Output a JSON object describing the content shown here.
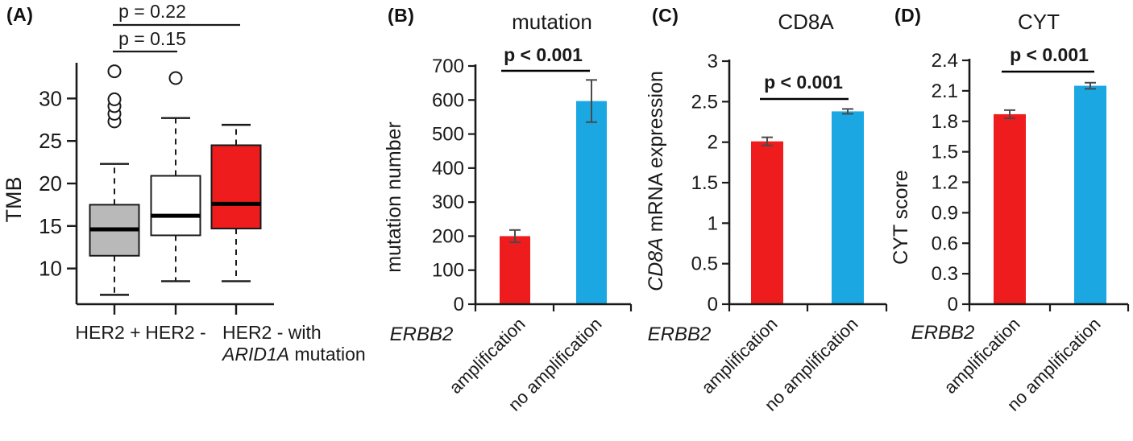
{
  "colors": {
    "red": "#ee1c1c",
    "blue": "#1aa7e2",
    "gray_box": "#b9b9b9",
    "p_value_red": "#ed1c24",
    "axis_black": "#1a1a1a",
    "error_bar": "#4a4a4a"
  },
  "panels": {
    "a": "(A)",
    "b": "(B)",
    "c": "(C)",
    "d": "(D)"
  },
  "chart_data": [
    {
      "panel": "A",
      "type": "boxplot",
      "title": "",
      "ylabel": "TMB",
      "ylim": [
        5.8,
        34.2
      ],
      "yticks": [
        10,
        15,
        20,
        25,
        30
      ],
      "categories": [
        "HER2 +",
        "HER2 -",
        "HER2 - with ARID1A mutation"
      ],
      "category_labels": {
        "g1": "HER2 +",
        "g2": "HER2 -",
        "g3_line1": "HER2 - with",
        "g3_italic": "ARID1A",
        "g3_rest": " mutation"
      },
      "boxes": [
        {
          "label": "HER2 +",
          "fill": "#b9b9b9",
          "whisker_low": 6.9,
          "q1": 11.5,
          "median": 14.6,
          "q3": 17.5,
          "whisker_high": 22.3,
          "outliers": [
            27.3,
            28.2,
            29.1,
            29.9,
            33.2
          ]
        },
        {
          "label": "HER2 -",
          "fill": "#ffffff",
          "whisker_low": 8.5,
          "q1": 13.9,
          "median": 16.2,
          "q3": 20.9,
          "whisker_high": 27.7,
          "outliers": [
            32.4
          ]
        },
        {
          "label": "HER2 - with ARID1A mutation",
          "fill": "#ee1c1c",
          "whisker_low": 8.5,
          "q1": 14.7,
          "median": 17.6,
          "q3": 24.5,
          "whisker_high": 26.9,
          "outliers": []
        }
      ],
      "annotations": [
        {
          "text": "p = 0.22",
          "groups": [
            1,
            3
          ]
        },
        {
          "text": "p = 0.15",
          "groups": [
            1,
            2
          ]
        }
      ]
    },
    {
      "panel": "B",
      "type": "bar",
      "title": "mutation",
      "ylabel": "mutation number",
      "ylim": [
        0,
        700
      ],
      "ytick_step": 100,
      "gene_label": "ERBB2",
      "pvalue": "p < 0.001",
      "categories": [
        "amplification",
        "no amplification"
      ],
      "values": [
        200,
        597
      ],
      "errors": [
        18,
        62
      ],
      "bar_colors": [
        "#ee1c1c",
        "#1aa7e2"
      ]
    },
    {
      "panel": "C",
      "type": "bar",
      "title": "CD8A",
      "ylabel_italic": "CD8A",
      "ylabel_rest": " mRNA expression",
      "ylim": [
        0,
        3
      ],
      "ytick_step": 0.5,
      "gene_label": "ERBB2",
      "pvalue": "p < 0.001",
      "categories": [
        "amplification",
        "no amplification"
      ],
      "values": [
        2.01,
        2.38
      ],
      "errors": [
        0.05,
        0.03
      ],
      "bar_colors": [
        "#ee1c1c",
        "#1aa7e2"
      ]
    },
    {
      "panel": "D",
      "type": "bar",
      "title": "CYT",
      "ylabel": "CYT score",
      "ylim": [
        0,
        2.4
      ],
      "ytick_step": 0.3,
      "gene_label": "ERBB2",
      "pvalue": "p < 0.001",
      "categories": [
        "amplification",
        "no amplification"
      ],
      "values": [
        1.87,
        2.15
      ],
      "errors": [
        0.04,
        0.03
      ],
      "bar_colors": [
        "#ee1c1c",
        "#1aa7e2"
      ]
    }
  ]
}
